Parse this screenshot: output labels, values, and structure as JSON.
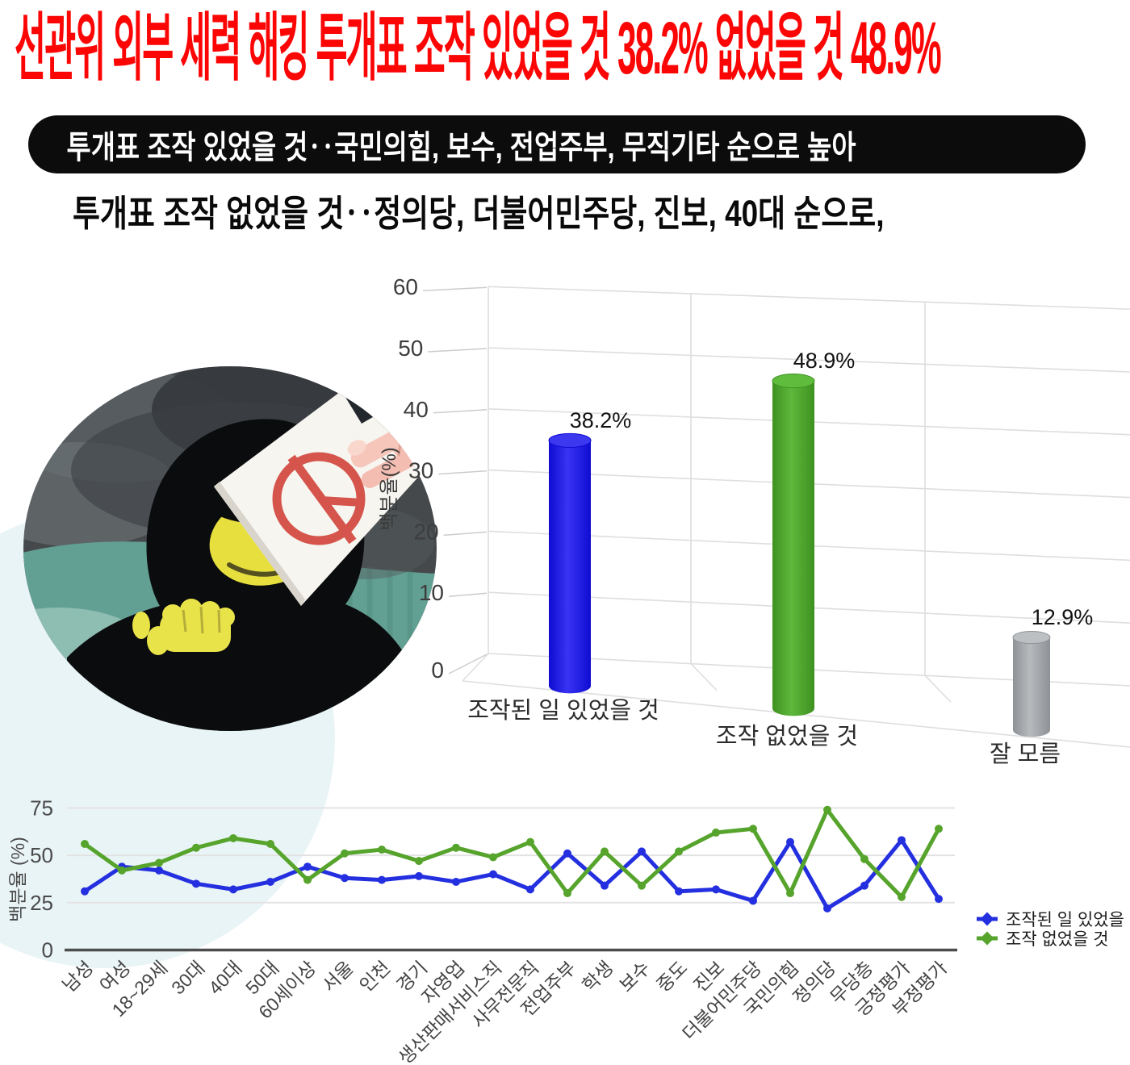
{
  "page": {
    "title": "선관위 외부 세력 해킹 투개표 조작 있었을 것 38.2% 없었을 것 48.9%",
    "title_color": "#fb0505",
    "banner": "투개표 조작 있었을 것‥국민의힘, 보수, 전업주부, 무직기타 순으로 높아",
    "banner_bg": "#0c0c0c",
    "subtitle": "투개표 조작 없었을 것‥정의당, 더불어민주당, 진보, 40대 순으로,"
  },
  "illustration": {
    "description": "hooded hacker holding white ballot paper with red prohibition mark, hand of another person gripping the ballot"
  },
  "chart_data": [
    {
      "type": "bar",
      "variant": "3d-cylinder",
      "categories": [
        "조작된 일 있었을 것",
        "조작 없었을 것",
        "잘 모름"
      ],
      "values": [
        38.2,
        48.9,
        12.9
      ],
      "labels": [
        "38.2%",
        "48.9%",
        "12.9%"
      ],
      "colors": [
        {
          "dark": "#0f0cd2",
          "light": "#3934f4",
          "top": "#3c38ef"
        },
        {
          "dark": "#3e9120",
          "light": "#5eb83b",
          "top": "#5fbc3d"
        },
        {
          "dark": "#8e9296",
          "light": "#b7babd",
          "top": "#bdc0c3"
        }
      ],
      "ylabel": "백분율(%)",
      "yticks": [
        0,
        10,
        20,
        30,
        40,
        50,
        60
      ],
      "ylim": [
        0,
        60
      ],
      "grid": true,
      "grid_color": "#dedede",
      "tick_color": "#3d3d3d",
      "value_label_color": "#121212"
    },
    {
      "type": "line",
      "categories": [
        "남성",
        "여성",
        "18~29세",
        "30대",
        "40대",
        "50대",
        "60세이상",
        "서울",
        "인천",
        "경기",
        "자영업",
        "생산판매서비스직",
        "사무전문직",
        "전업주부",
        "학생",
        "보수",
        "중도",
        "진보",
        "더불어민주당",
        "국민의힘",
        "정의당",
        "무당층",
        "긍정평가",
        "부정평가"
      ],
      "series": [
        {
          "name": "조작된 일 있었을 것",
          "color": "#2430df",
          "values": [
            31,
            44,
            42,
            35,
            32,
            36,
            44,
            38,
            37,
            39,
            36,
            40,
            32,
            51,
            34,
            52,
            31,
            32,
            26,
            57,
            22,
            34,
            58,
            27
          ]
        },
        {
          "name": "조작 없었을 것",
          "color": "#56a42c",
          "values": [
            56,
            42,
            46,
            54,
            59,
            56,
            37,
            51,
            53,
            47,
            54,
            49,
            57,
            30,
            52,
            34,
            52,
            62,
            64,
            30,
            74,
            48,
            28,
            64
          ]
        }
      ],
      "ylabel": "백분율 (%)",
      "yticks": [
        0,
        25,
        50,
        75
      ],
      "ylim": [
        0,
        80
      ],
      "grid": true,
      "grid_color": "#e3e3e3",
      "axis_color": "#4d4d4d",
      "tick_color": "#4a4a4a",
      "legend_position": "right"
    }
  ]
}
